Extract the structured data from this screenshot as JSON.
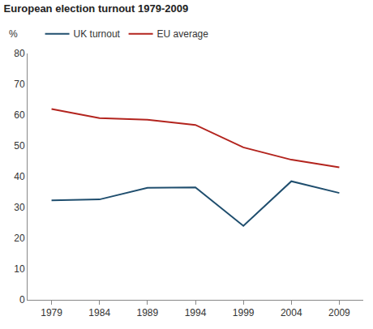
{
  "chart_data": {
    "type": "line",
    "title": "European election turnout 1979-2009",
    "ylabel": "%",
    "categories": [
      "1979",
      "1984",
      "1989",
      "1994",
      "1999",
      "2004",
      "2009"
    ],
    "series": [
      {
        "name": "UK turnout",
        "color": "#1f4e6e",
        "values": [
          32.3,
          32.6,
          36.4,
          36.5,
          24.0,
          38.5,
          34.7
        ]
      },
      {
        "name": "EU average",
        "color": "#b3241e",
        "values": [
          62.0,
          59.0,
          58.5,
          56.8,
          49.5,
          45.5,
          43.0
        ]
      }
    ],
    "ylim": [
      0,
      80
    ],
    "yticks": [
      0,
      10,
      20,
      30,
      40,
      50,
      60,
      70,
      80
    ],
    "grid": false,
    "legend": "top"
  }
}
